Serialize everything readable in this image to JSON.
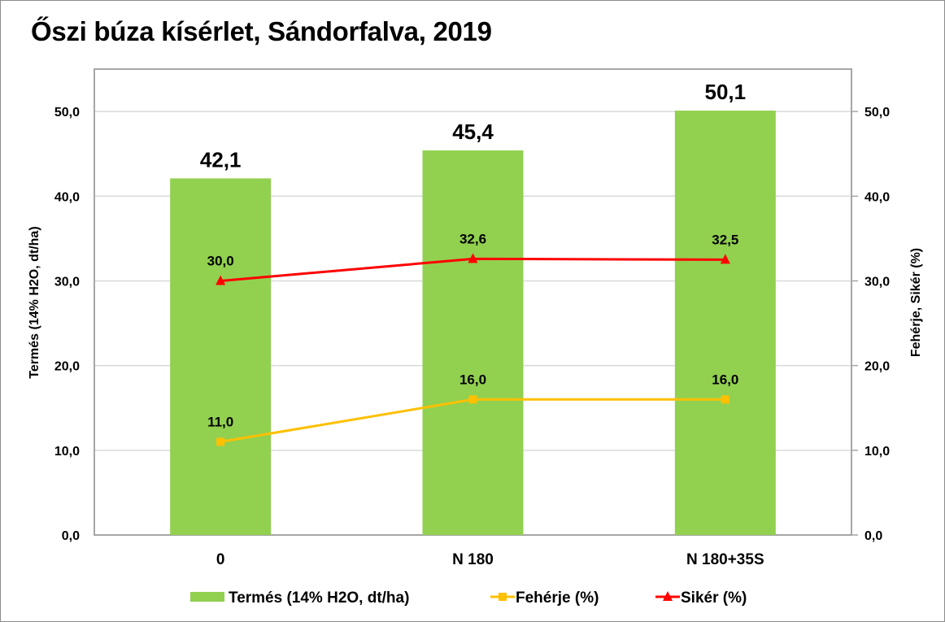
{
  "chart_data": {
    "type": "bar",
    "title": "Őszi búza kísérlet, Sándorfalva, 2019",
    "categories": [
      "0",
      "N 180",
      "N 180+35S"
    ],
    "series": [
      {
        "name": "Termés (14% H2O, dt/ha)",
        "kind": "bar",
        "axis": "left",
        "color": "#92d050",
        "values": [
          42.1,
          45.4,
          50.1
        ],
        "labels": [
          "42,1",
          "45,4",
          "50,1"
        ]
      },
      {
        "name": "Fehérje (%)",
        "kind": "line",
        "axis": "right",
        "marker": "square",
        "color": "#ffc000",
        "values": [
          11.0,
          16.0,
          16.0
        ],
        "labels": [
          "11,0",
          "16,0",
          "16,0"
        ]
      },
      {
        "name": "Sikér (%)",
        "kind": "line",
        "axis": "right",
        "marker": "triangle",
        "color": "#ff0000",
        "values": [
          30.0,
          32.6,
          32.5
        ],
        "labels": [
          "30,0",
          "32,6",
          "32,5"
        ]
      }
    ],
    "ylabel": "Termés (14% H2O, dt/ha)",
    "y2label": "Fehérje, Sikér (%)",
    "xlabel": "",
    "ylim": [
      0,
      55
    ],
    "y2lim": [
      0,
      55
    ],
    "yticks": [
      0,
      10,
      20,
      30,
      40,
      50
    ],
    "ytick_labels": [
      "0,0",
      "10,0",
      "20,0",
      "30,0",
      "40,0",
      "50,0"
    ],
    "grid": true,
    "legend_position": "bottom"
  }
}
